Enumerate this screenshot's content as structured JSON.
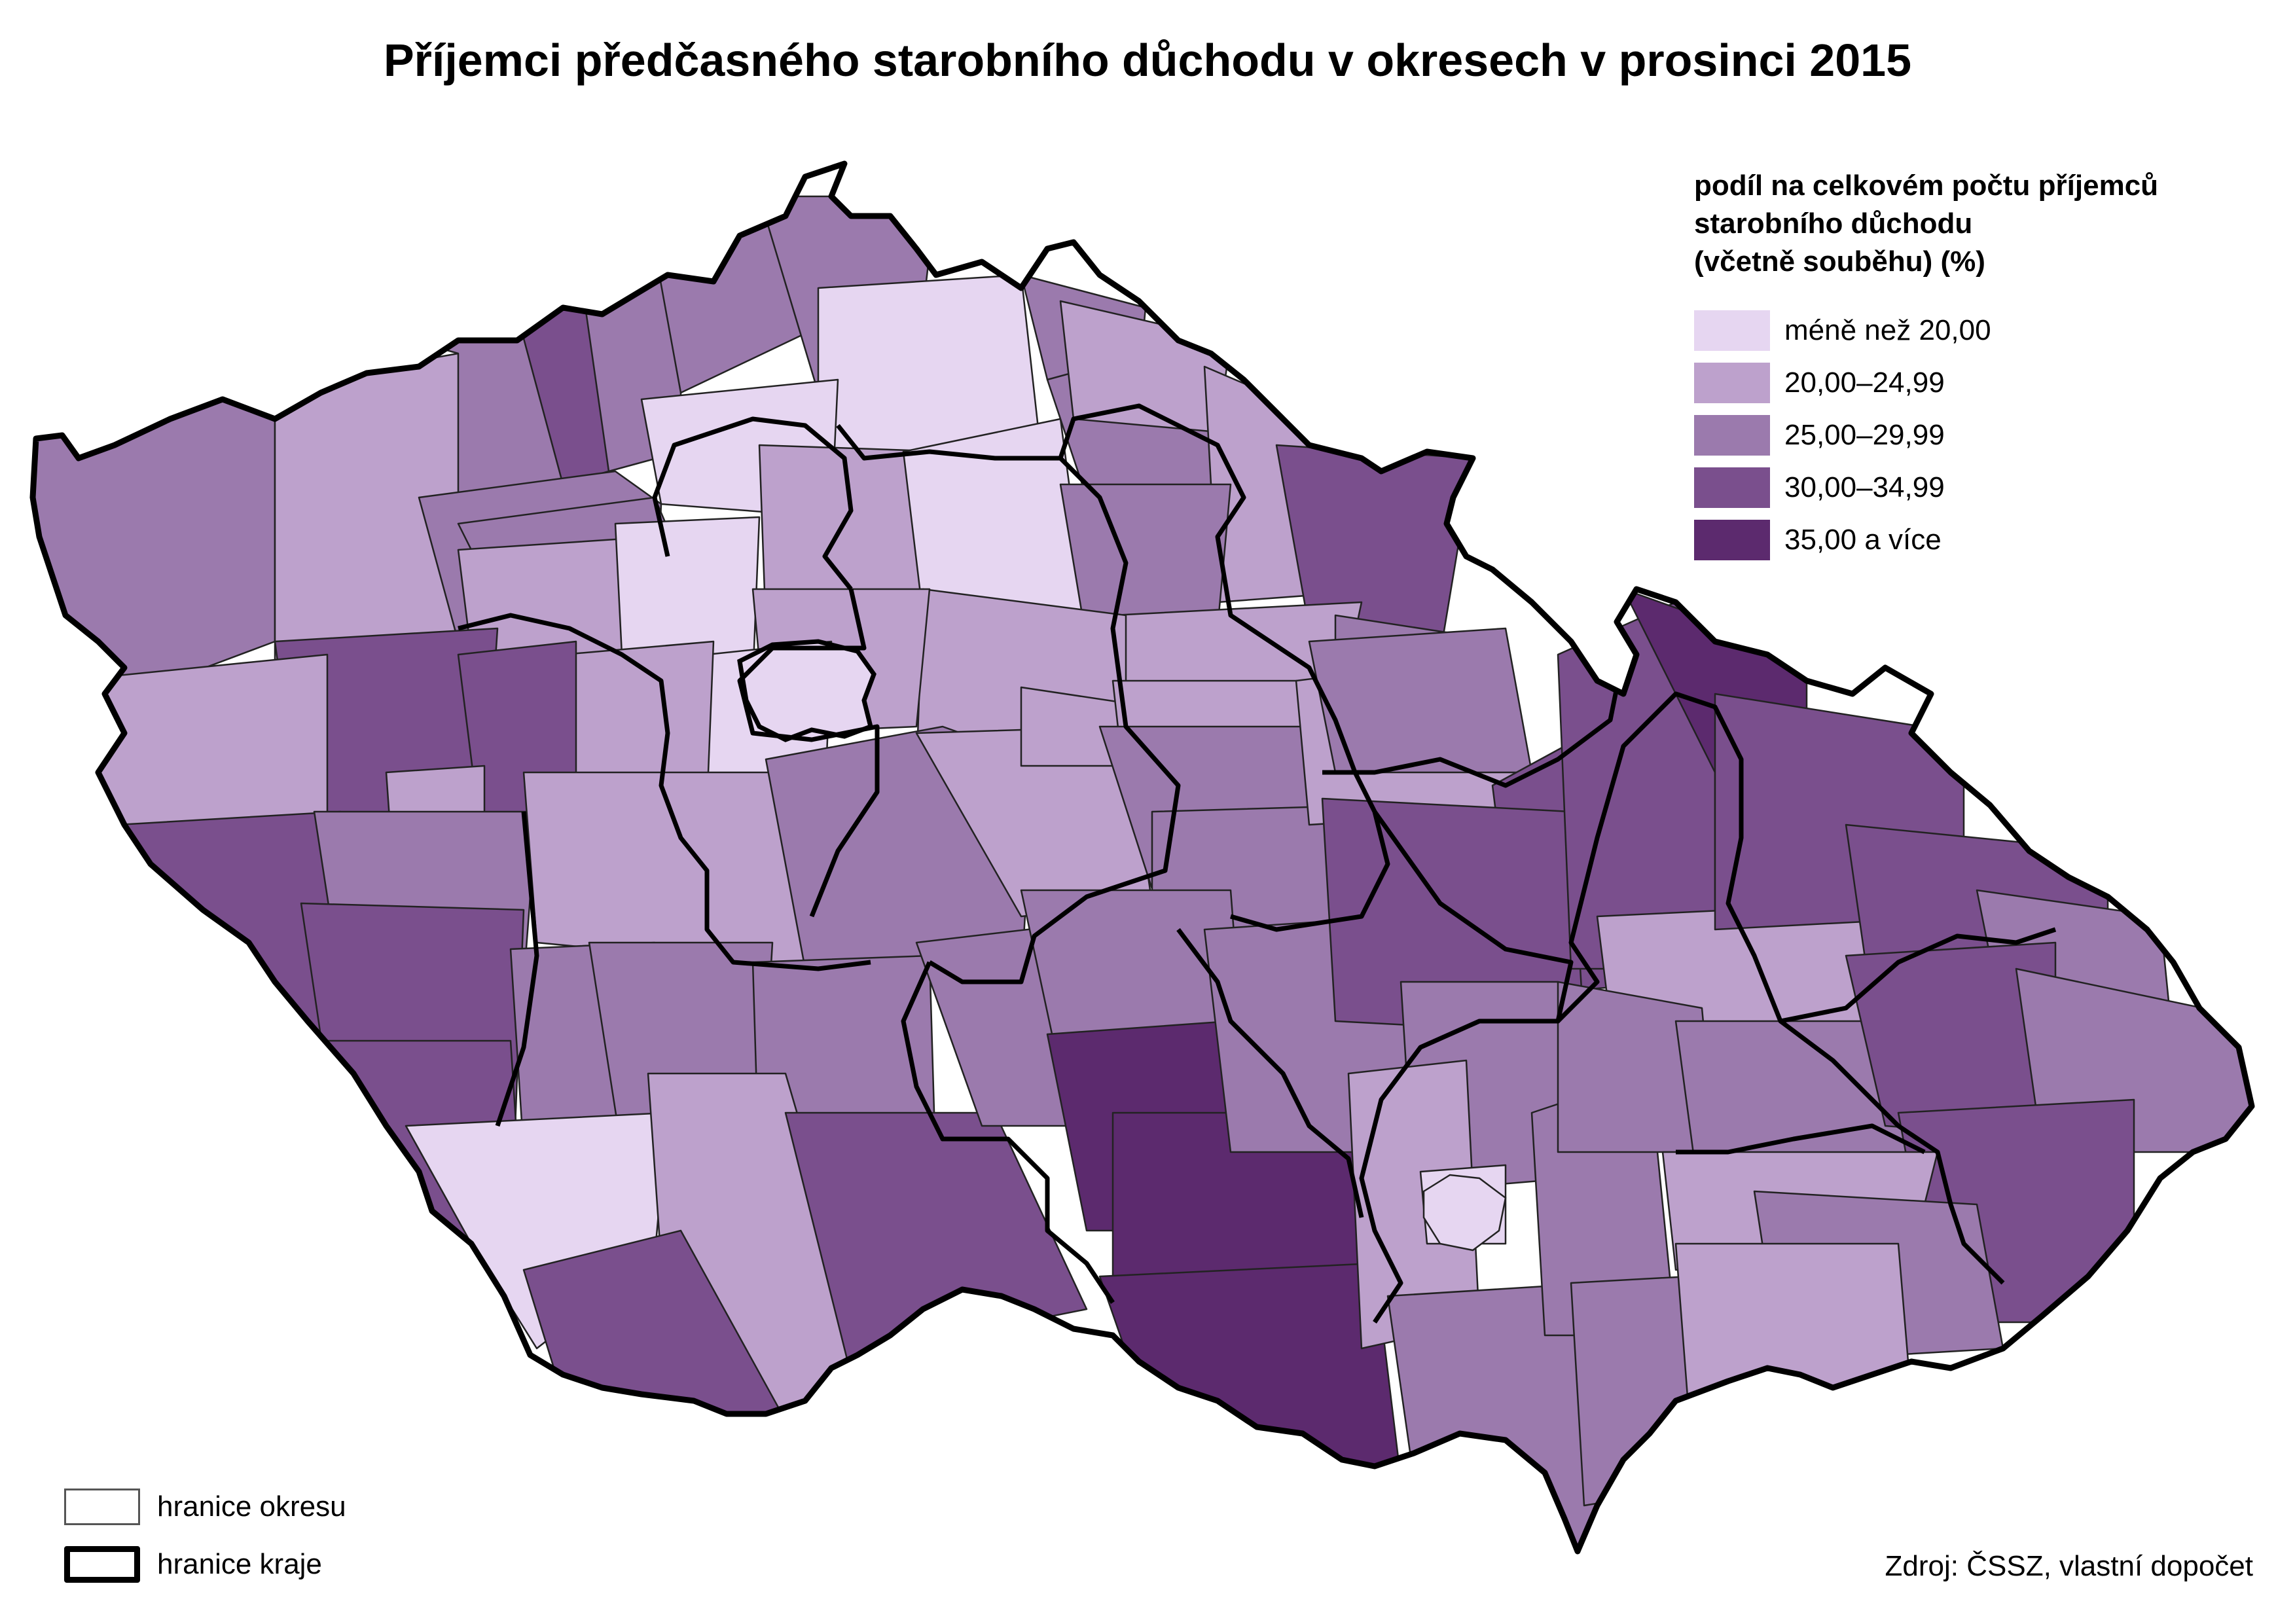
{
  "title": "Příjemci předčasného starobního důchodu v okresech v prosinci 2015",
  "legend": {
    "title_lines": [
      "podíl na celkovém počtu příjemců",
      "starobního důchodu",
      "(včetně souběhu) (%)"
    ],
    "classes": [
      {
        "label": "méně než 20,00",
        "color": "#e6d6f1"
      },
      {
        "label": "20,00–24,99",
        "color": "#bda1cc"
      },
      {
        "label": "25,00–29,99",
        "color": "#9b7aad"
      },
      {
        "label": "30,00–34,99",
        "color": "#7a4f8d"
      },
      {
        "label": "35,00 a více",
        "color": "#5c2a6e"
      }
    ]
  },
  "boundary_legend": {
    "district": "hranice okresu",
    "region": "hranice kraje"
  },
  "source": "Zdroj: ČSSZ, vlastní dopočet"
}
